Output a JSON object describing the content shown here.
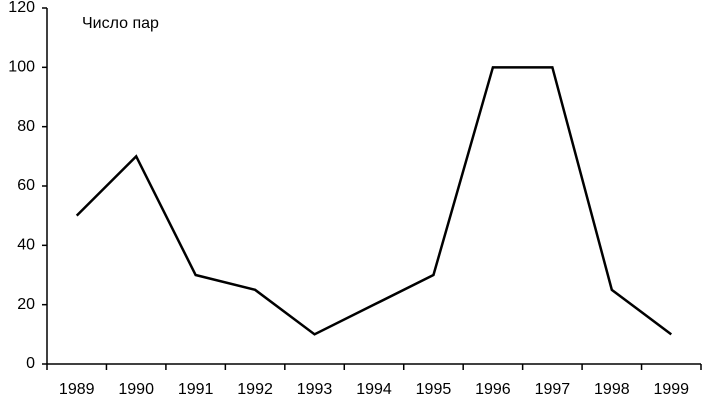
{
  "chart_data": {
    "type": "line",
    "annotation": "Число пар",
    "categories": [
      "1989",
      "1990",
      "1991",
      "1992",
      "1993",
      "1994",
      "1995",
      "1996",
      "1997",
      "1998",
      "1999"
    ],
    "values": [
      50,
      70,
      30,
      25,
      10,
      20,
      30,
      100,
      100,
      25,
      10
    ],
    "color": "#000000",
    "ylim": [
      0,
      120
    ],
    "yticks": [
      0,
      20,
      40,
      60,
      80,
      100,
      120
    ]
  }
}
